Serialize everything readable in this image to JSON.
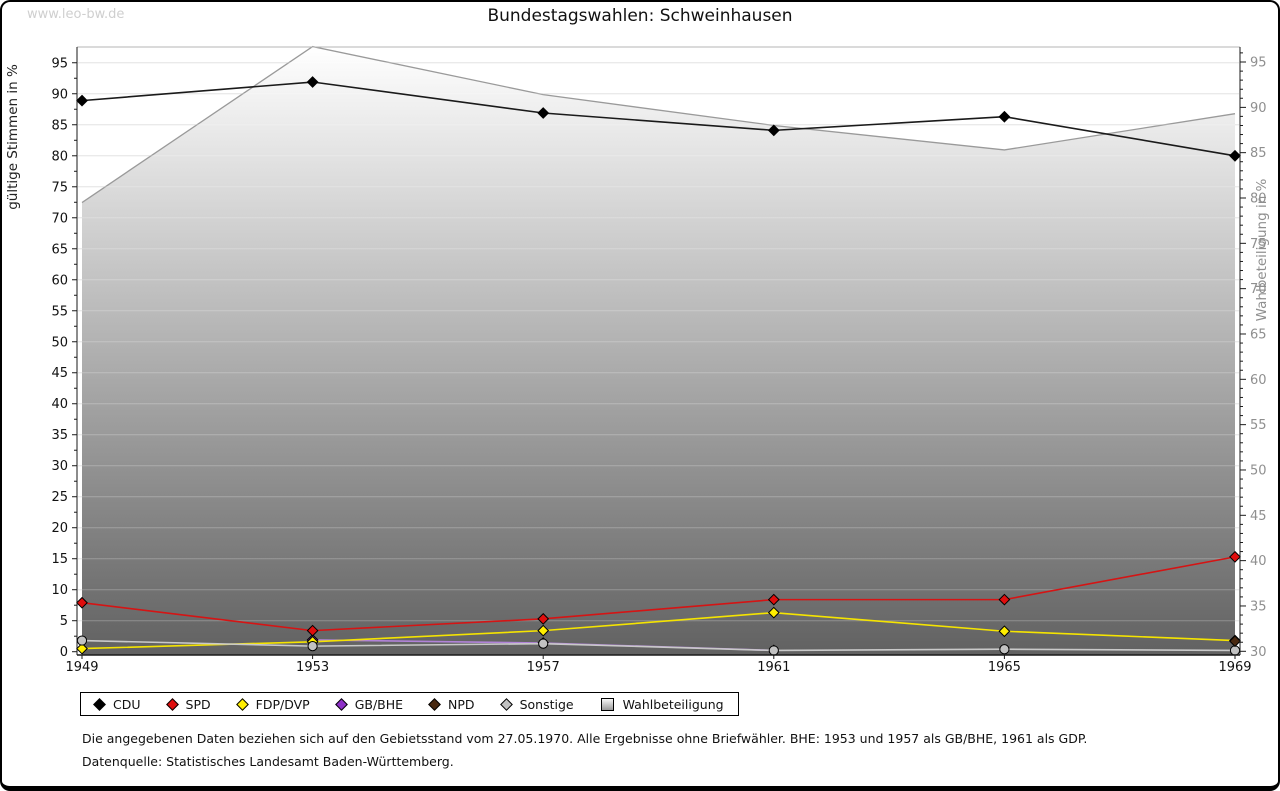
{
  "watermark": "www.leo-bw.de",
  "title": "Bundestagswahlen: Schweinhausen",
  "axes": {
    "left_label": "gültige Stimmen in %",
    "right_label": "Wahlbeteiligung in %",
    "left_min": 0,
    "left_max": 95,
    "left_step": 5,
    "right_min": 30,
    "right_max": 95,
    "right_step": 5,
    "x_labels": [
      "1949",
      "1953",
      "1957",
      "1961",
      "1965",
      "1969"
    ]
  },
  "chart_data": {
    "type": "line",
    "title": "Bundestagswahlen: Schweinhausen",
    "xlabel": "",
    "ylabel_left": "gültige Stimmen in %",
    "ylabel_right": "Wahlbeteiligung in %",
    "ylim_left": [
      0,
      95
    ],
    "ylim_right": [
      30,
      95
    ],
    "grid": true,
    "legend_position": "bottom",
    "x": [
      1949,
      1953,
      1957,
      1961,
      1965,
      1969
    ],
    "series": [
      {
        "name": "CDU",
        "axis": "left",
        "style": "line",
        "marker": "diamond",
        "color": "#000000",
        "line_color": "#1a1a1a",
        "values": [
          88.9,
          91.9,
          86.9,
          84.1,
          86.3,
          80.0
        ]
      },
      {
        "name": "SPD",
        "axis": "left",
        "style": "line",
        "marker": "diamond",
        "color": "#e00d0d",
        "line_color": "#d51414",
        "values": [
          7.9,
          3.4,
          5.3,
          8.4,
          8.4,
          15.3
        ]
      },
      {
        "name": "FDP/DVP",
        "axis": "left",
        "style": "line",
        "marker": "diamond",
        "color": "#ffee00",
        "line_color": "#f5e400",
        "values": [
          0.5,
          1.6,
          3.4,
          6.3,
          3.3,
          1.8
        ]
      },
      {
        "name": "GB/BHE",
        "axis": "left",
        "style": "line",
        "marker": "diamond",
        "color": "#8d2fc7",
        "line_color": "#b183d8",
        "values": [
          null,
          1.9,
          1.4,
          0.2,
          null,
          null
        ]
      },
      {
        "name": "NPD",
        "axis": "left",
        "style": "line",
        "marker": "diamond",
        "color": "#482810",
        "line_color": "#482810",
        "values": [
          null,
          null,
          null,
          null,
          null,
          1.7
        ]
      },
      {
        "name": "Sonstige",
        "axis": "left",
        "style": "line",
        "marker": "circle",
        "color": "#c2c2c2",
        "line_color": "#c9c9c9",
        "values": [
          1.8,
          0.9,
          1.3,
          0.2,
          0.4,
          0.2
        ]
      },
      {
        "name": "Wahlbeteiligung",
        "axis": "right",
        "style": "area",
        "marker": "none",
        "color": "#9a9a9a",
        "line_color": "#9a9a9a",
        "values": [
          79.5,
          96.7,
          91.4,
          88.0,
          85.3,
          89.3
        ]
      }
    ]
  },
  "legend": {
    "items": [
      {
        "label": "CDU",
        "shape": "diamond",
        "color": "#000000"
      },
      {
        "label": "SPD",
        "shape": "diamond",
        "color": "#e00d0d"
      },
      {
        "label": "FDP/DVP",
        "shape": "diamond",
        "color": "#ffee00"
      },
      {
        "label": "GB/BHE",
        "shape": "diamond",
        "color": "#8d2fc7"
      },
      {
        "label": "NPD",
        "shape": "diamond",
        "color": "#482810"
      },
      {
        "label": "Sonstige",
        "shape": "diamond",
        "color": "#c2c2c2"
      },
      {
        "label": "Wahlbeteiligung",
        "shape": "square",
        "color": "#bdbdbd"
      }
    ]
  },
  "footnotes": {
    "line1": "Die angegebenen Daten beziehen sich auf den Gebietsstand vom 27.05.1970. Alle Ergebnisse ohne Briefwähler. BHE: 1953 und 1957 als GB/BHE, 1961 als GDP.",
    "line2": "Datenquelle: Statistisches Landesamt Baden-Württemberg."
  },
  "colors": {
    "grid": "#dcdcdc",
    "grid_over_area": "rgba(255,255,255,0.25)",
    "axis": "#1a1a1a",
    "top_border": "#b4b4b4",
    "right_axis_text": "#8f8f8f",
    "left_axis_text": "#111111",
    "area_gradient_top": "#ffffff",
    "area_gradient_bottom": "#616161",
    "watermark": "#cfcfcf"
  }
}
